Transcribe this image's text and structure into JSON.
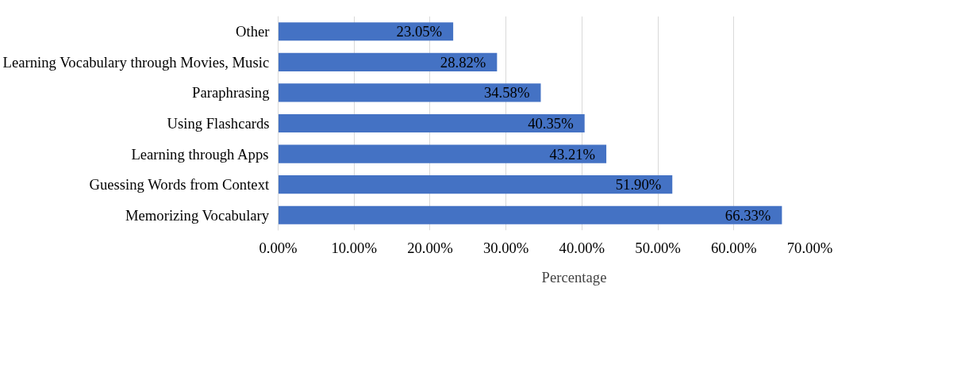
{
  "chart_data": {
    "type": "bar",
    "orientation": "horizontal",
    "categories": [
      "Other",
      "Learning Vocabulary through Movies, Music",
      "Paraphrasing",
      "Using Flashcards",
      "Learning through Apps",
      "Guessing Words from Context",
      "Memorizing Vocabulary"
    ],
    "series": [
      {
        "name": "Percentage",
        "color": "#4472c4",
        "values": [
          23.05,
          28.82,
          34.58,
          40.35,
          43.21,
          51.9,
          66.33
        ],
        "value_labels": [
          "23.05%",
          "28.82%",
          "34.58%",
          "40.35%",
          "43.21%",
          "51.90%",
          "66.33%"
        ]
      }
    ],
    "xlim": [
      0,
      70
    ],
    "xticks": [
      {
        "value": 0,
        "label": "0.00%"
      },
      {
        "value": 10,
        "label": "10.00%"
      },
      {
        "value": 20,
        "label": "20.00%"
      },
      {
        "value": 30,
        "label": "30.00%"
      },
      {
        "value": 40,
        "label": "40.00%"
      },
      {
        "value": 50,
        "label": "50.00%"
      },
      {
        "value": 60,
        "label": "60.00%"
      },
      {
        "value": 70,
        "label": "70.00%"
      }
    ],
    "grid": "x",
    "legend": "bottom"
  }
}
